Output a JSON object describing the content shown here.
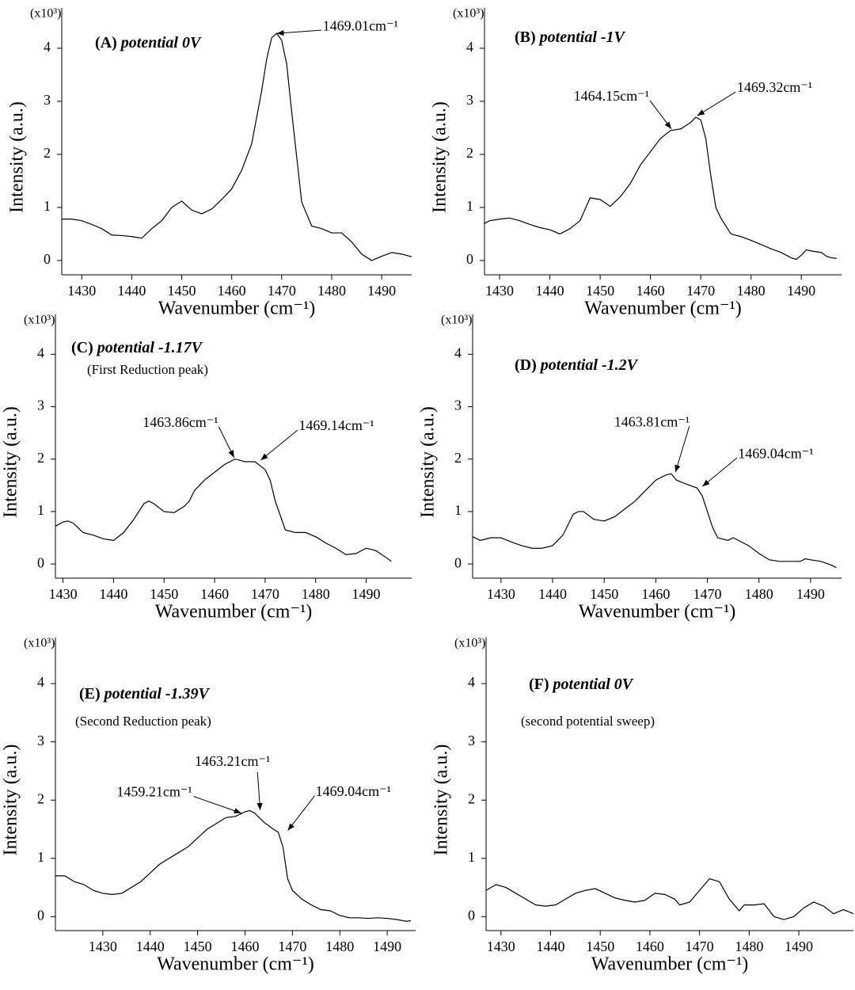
{
  "chart_data": [
    {
      "type": "line",
      "label": "(A)",
      "title": "potential 0V",
      "x_label": "Wavenumber (cm⁻¹)",
      "y_label": "Intensity (a.u.)",
      "y_multiplier": "(x10³)",
      "color": "#000000",
      "xlim": [
        1426,
        1496
      ],
      "ylim": [
        -0.27,
        4.76
      ],
      "xticks": [
        1430,
        1440,
        1450,
        1460,
        1470,
        1480,
        1490
      ],
      "yticks": [
        0,
        1,
        2,
        3,
        4
      ],
      "x": [
        1426,
        1428,
        1430,
        1432,
        1434,
        1436,
        1438,
        1440,
        1442,
        1444,
        1446,
        1448,
        1450,
        1452,
        1454,
        1456,
        1458,
        1460,
        1462,
        1464,
        1466,
        1467,
        1468,
        1469,
        1470,
        1471,
        1472,
        1474,
        1476,
        1478,
        1480,
        1482,
        1484,
        1486,
        1488,
        1490,
        1492,
        1494,
        1496
      ],
      "values": [
        0.78,
        0.78,
        0.75,
        0.68,
        0.6,
        0.48,
        0.47,
        0.45,
        0.42,
        0.6,
        0.75,
        1.0,
        1.12,
        0.95,
        0.88,
        0.97,
        1.15,
        1.35,
        1.7,
        2.2,
        3.2,
        3.8,
        4.2,
        4.28,
        4.15,
        3.7,
        2.8,
        1.1,
        0.65,
        0.6,
        0.52,
        0.52,
        0.35,
        0.12,
        0.0,
        0.08,
        0.15,
        0.12,
        0.07
      ],
      "annotations": [
        {
          "text": "1469.01cm⁻¹",
          "x": 1469.01,
          "y": 4.25
        }
      ]
    },
    {
      "type": "line",
      "label": "(B)",
      "title": "potential -1V",
      "x_label": "Wavenumber (cm⁻¹)",
      "y_label": "Intensity (a.u.)",
      "y_multiplier": "(x10³)",
      "color": "#000000",
      "xlim": [
        1427,
        1498
      ],
      "ylim": [
        -0.27,
        4.76
      ],
      "xticks": [
        1430,
        1440,
        1450,
        1460,
        1470,
        1480,
        1490
      ],
      "yticks": [
        0,
        1,
        2,
        3,
        4
      ],
      "x": [
        1427,
        1428,
        1430,
        1432,
        1434,
        1436,
        1438,
        1440,
        1442,
        1444,
        1446,
        1448,
        1450,
        1452,
        1454,
        1456,
        1458,
        1460,
        1462,
        1464,
        1466,
        1468,
        1469,
        1470,
        1471,
        1472,
        1473,
        1474,
        1476,
        1478,
        1480,
        1482,
        1484,
        1486,
        1488,
        1489,
        1490,
        1491,
        1492,
        1494,
        1495,
        1496,
        1497
      ],
      "values": [
        0.7,
        0.75,
        0.78,
        0.8,
        0.75,
        0.68,
        0.62,
        0.58,
        0.5,
        0.6,
        0.75,
        1.18,
        1.15,
        1.02,
        1.2,
        1.45,
        1.8,
        2.05,
        2.3,
        2.45,
        2.48,
        2.6,
        2.7,
        2.65,
        2.3,
        1.6,
        1.0,
        0.8,
        0.5,
        0.45,
        0.38,
        0.3,
        0.22,
        0.15,
        0.05,
        0.02,
        0.1,
        0.2,
        0.18,
        0.15,
        0.08,
        0.05,
        0.04
      ],
      "annotations": [
        {
          "text": "1464.15cm⁻¹",
          "x": 1464.15,
          "y": 2.45
        },
        {
          "text": "1469.32cm⁻¹",
          "x": 1469.32,
          "y": 2.7
        }
      ]
    },
    {
      "type": "line",
      "label": "(C)",
      "title": "potential -1.17V",
      "subtitle": "(First Reduction peak)",
      "x_label": "Wavenumber (cm⁻¹)",
      "y_label": "Intensity (a.u.)",
      "y_multiplier": "(x10³)",
      "color": "#000000",
      "xlim": [
        1428.5,
        1499
      ],
      "ylim": [
        -0.27,
        4.76
      ],
      "xticks": [
        1430,
        1440,
        1450,
        1460,
        1470,
        1480,
        1490
      ],
      "yticks": [
        0,
        1,
        2,
        3,
        4
      ],
      "x": [
        1428.5,
        1430,
        1431,
        1432,
        1434,
        1436,
        1438,
        1440,
        1442,
        1444,
        1446,
        1447,
        1448,
        1450,
        1452,
        1454,
        1455,
        1456,
        1458,
        1460,
        1462,
        1464,
        1465,
        1466,
        1468,
        1470,
        1471,
        1472,
        1474,
        1476,
        1478,
        1480,
        1482,
        1484,
        1486,
        1488,
        1490,
        1491,
        1492,
        1494,
        1495
      ],
      "values": [
        0.72,
        0.8,
        0.82,
        0.78,
        0.6,
        0.55,
        0.48,
        0.45,
        0.6,
        0.85,
        1.15,
        1.2,
        1.15,
        1.0,
        0.98,
        1.1,
        1.2,
        1.4,
        1.6,
        1.75,
        1.9,
        2.0,
        1.98,
        1.95,
        1.95,
        1.8,
        1.6,
        1.2,
        0.65,
        0.6,
        0.6,
        0.52,
        0.4,
        0.3,
        0.18,
        0.2,
        0.3,
        0.28,
        0.25,
        0.12,
        0.05
      ],
      "annotations": [
        {
          "text": "1463.86cm⁻¹",
          "x": 1463.86,
          "y": 2.0
        },
        {
          "text": "1469.14cm⁻¹",
          "x": 1469.14,
          "y": 1.95
        }
      ]
    },
    {
      "type": "line",
      "label": "(D)",
      "title": "potential -1.2V",
      "x_label": "Wavenumber (cm⁻¹)",
      "y_label": "Intensity (a.u.)",
      "y_multiplier": "(x10³)",
      "color": "#000000",
      "xlim": [
        1424.5,
        1496
      ],
      "ylim": [
        -0.27,
        4.76
      ],
      "xticks": [
        1430,
        1440,
        1450,
        1460,
        1470,
        1480,
        1490
      ],
      "yticks": [
        0,
        1,
        2,
        3,
        4
      ],
      "x": [
        1424.5,
        1426,
        1428,
        1430,
        1432,
        1434,
        1436,
        1438,
        1440,
        1442,
        1444,
        1445,
        1446,
        1448,
        1450,
        1452,
        1454,
        1456,
        1458,
        1460,
        1462,
        1463,
        1464,
        1466,
        1468,
        1469,
        1470,
        1471,
        1472,
        1474,
        1475,
        1478,
        1480,
        1482,
        1484,
        1486,
        1488,
        1489,
        1490,
        1492,
        1494,
        1495
      ],
      "values": [
        0.52,
        0.45,
        0.5,
        0.5,
        0.42,
        0.35,
        0.3,
        0.3,
        0.35,
        0.55,
        0.95,
        1.0,
        1.0,
        0.85,
        0.82,
        0.9,
        1.05,
        1.2,
        1.4,
        1.6,
        1.7,
        1.72,
        1.6,
        1.52,
        1.45,
        1.3,
        1.0,
        0.7,
        0.5,
        0.45,
        0.5,
        0.35,
        0.2,
        0.08,
        0.05,
        0.05,
        0.05,
        0.1,
        0.08,
        0.05,
        -0.02,
        -0.07
      ],
      "annotations": [
        {
          "text": "1463.81cm⁻¹",
          "x": 1463.81,
          "y": 1.72
        },
        {
          "text": "1469.04cm⁻¹",
          "x": 1469.04,
          "y": 1.45
        }
      ]
    },
    {
      "type": "line",
      "label": "(E)",
      "title": "potential -1.39V",
      "subtitle": "(Second Reduction peak)",
      "x_label": "Wavenumber (cm⁻¹)",
      "y_label": "Intensity (a.u.)",
      "y_multiplier": "(x10³)",
      "color": "#000000",
      "xlim": [
        1420,
        1496
      ],
      "ylim": [
        -0.24,
        4.79
      ],
      "xticks": [
        1430,
        1440,
        1450,
        1460,
        1470,
        1480,
        1490
      ],
      "yticks": [
        0,
        1,
        2,
        3,
        4
      ],
      "x": [
        1420,
        1422,
        1424,
        1426,
        1428,
        1430,
        1432,
        1434,
        1436,
        1438,
        1440,
        1442,
        1444,
        1446,
        1448,
        1450,
        1452,
        1454,
        1456,
        1458,
        1460,
        1461,
        1462,
        1464,
        1466,
        1467,
        1468,
        1469,
        1470,
        1472,
        1474,
        1476,
        1478,
        1480,
        1482,
        1484,
        1486,
        1488,
        1490,
        1492,
        1494,
        1495
      ],
      "values": [
        0.7,
        0.7,
        0.6,
        0.55,
        0.45,
        0.4,
        0.38,
        0.4,
        0.5,
        0.6,
        0.75,
        0.9,
        1.0,
        1.1,
        1.2,
        1.35,
        1.5,
        1.6,
        1.7,
        1.72,
        1.8,
        1.82,
        1.78,
        1.62,
        1.5,
        1.45,
        1.2,
        0.65,
        0.45,
        0.3,
        0.2,
        0.12,
        0.1,
        0.02,
        -0.02,
        -0.02,
        -0.03,
        -0.02,
        -0.03,
        -0.05,
        -0.08,
        -0.07
      ],
      "annotations": [
        {
          "text": "1459.21cm⁻¹",
          "x": 1459.21,
          "y": 1.75
        },
        {
          "text": "1463.21cm⁻¹",
          "x": 1463.21,
          "y": 1.8
        },
        {
          "text": "1469.04cm⁻¹",
          "x": 1469.04,
          "y": 1.45
        }
      ]
    },
    {
      "type": "line",
      "label": "(F)",
      "title": "potential 0V",
      "subtitle": "(second potential sweep)",
      "x_label": "Wavenumber (cm⁻¹)",
      "y_label": "Intensity (a.u.)",
      "y_multiplier": "(x10³)",
      "color": "#000000",
      "xlim": [
        1427,
        1501
      ],
      "ylim": [
        -0.24,
        4.79
      ],
      "xticks": [
        1430,
        1440,
        1450,
        1460,
        1470,
        1480,
        1490
      ],
      "yticks": [
        0,
        1,
        2,
        3,
        4
      ],
      "x": [
        1427,
        1429,
        1431,
        1433,
        1435,
        1437,
        1439,
        1441,
        1443,
        1445,
        1447,
        1449,
        1451,
        1453,
        1455,
        1457,
        1459,
        1461,
        1463,
        1465,
        1466,
        1468,
        1470,
        1472,
        1474,
        1476,
        1478,
        1479,
        1481,
        1483,
        1485,
        1487,
        1489,
        1491,
        1493,
        1495,
        1497,
        1499,
        1501
      ],
      "values": [
        0.45,
        0.55,
        0.5,
        0.4,
        0.3,
        0.2,
        0.18,
        0.2,
        0.3,
        0.4,
        0.45,
        0.48,
        0.4,
        0.32,
        0.28,
        0.25,
        0.28,
        0.4,
        0.38,
        0.3,
        0.2,
        0.25,
        0.45,
        0.65,
        0.6,
        0.3,
        0.1,
        0.2,
        0.2,
        0.22,
        0.0,
        -0.05,
        0.0,
        0.15,
        0.25,
        0.18,
        0.05,
        0.12,
        0.05
      ],
      "annotations": []
    }
  ]
}
